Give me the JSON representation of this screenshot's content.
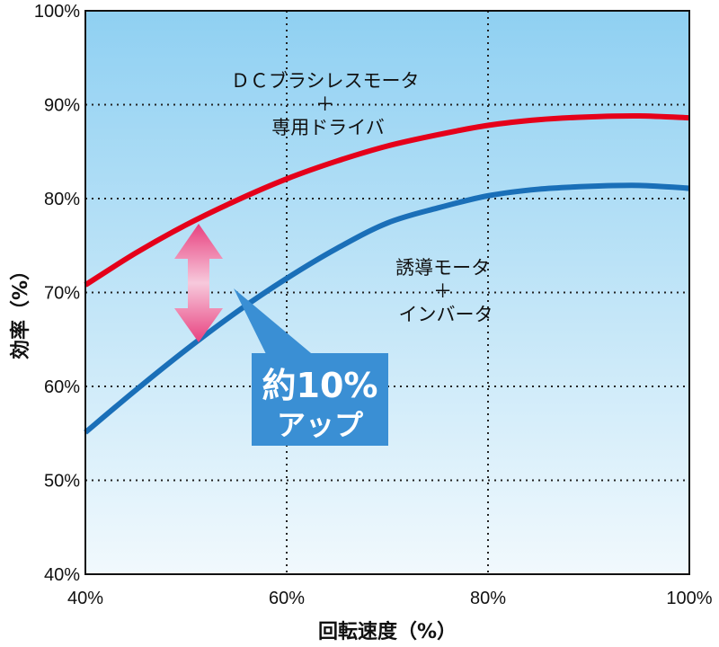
{
  "chart_data": {
    "type": "line",
    "xlabel": "回転速度（%）",
    "ylabel": "効率（%）",
    "xlim": [
      40,
      100
    ],
    "ylim": [
      40,
      100
    ],
    "x_ticks": [
      "40%",
      "60%",
      "80%",
      "100%"
    ],
    "y_ticks": [
      "40%",
      "50%",
      "60%",
      "70%",
      "80%",
      "90%",
      "100%"
    ],
    "grid": true,
    "series": [
      {
        "label_lines": [
          "ＤＣブラシレスモータ",
          "＋",
          "専用ドライバ"
        ],
        "color": "#e5001a",
        "x": [
          40,
          45,
          50,
          55,
          60,
          65,
          70,
          75,
          80,
          85,
          90,
          95,
          100
        ],
        "y": [
          70.8,
          74.2,
          77.2,
          79.8,
          82.1,
          84.0,
          85.6,
          86.8,
          87.8,
          88.4,
          88.7,
          88.8,
          88.6
        ]
      },
      {
        "label_lines": [
          "誘導モータ",
          "＋",
          "インバータ"
        ],
        "color": "#1a6fb8",
        "x": [
          40,
          45,
          50,
          55,
          60,
          65,
          70,
          75,
          80,
          85,
          90,
          95,
          100
        ],
        "y": [
          55.1,
          59.6,
          63.9,
          67.9,
          71.5,
          74.7,
          77.4,
          79.0,
          80.3,
          81.0,
          81.3,
          81.4,
          81.1
        ]
      }
    ],
    "annotation": {
      "lines": [
        "約10%",
        "アップ"
      ],
      "at_x": 51.5,
      "colors": {
        "arrow": "#e8417f",
        "box": "#3a8fd4"
      }
    },
    "colors": {
      "background_top": "#8fd0f2",
      "background_bottom": "#f1f9fd"
    }
  }
}
